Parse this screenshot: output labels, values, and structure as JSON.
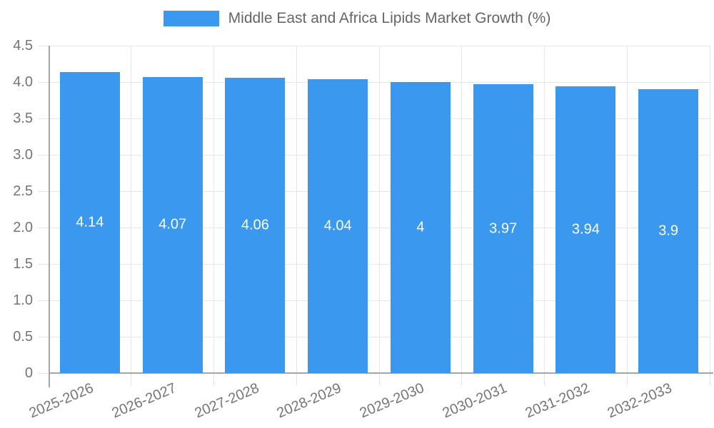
{
  "chart_data": {
    "type": "bar",
    "title": "Middle East and Africa Lipids Market Growth (%)",
    "categories": [
      "2025-2026",
      "2026-2027",
      "2027-2028",
      "2028-2029",
      "2029-2030",
      "2030-2031",
      "2031-2032",
      "2032-2033"
    ],
    "values": [
      4.14,
      4.07,
      4.06,
      4.04,
      4,
      3.97,
      3.94,
      3.9
    ],
    "value_labels": [
      "4.14",
      "4.07",
      "4.06",
      "4.04",
      "4",
      "3.97",
      "3.94",
      "3.9"
    ],
    "xlabel": "",
    "ylabel": "",
    "ylim": [
      0,
      4.5
    ],
    "yticks": [
      0,
      0.5,
      1,
      1.5,
      2,
      2.5,
      3,
      3.5,
      4,
      4.5
    ],
    "ytick_labels": [
      "0",
      "0.5",
      "1.0",
      "1.5",
      "2.0",
      "2.5",
      "3.0",
      "3.5",
      "4.0",
      "4.5"
    ],
    "grid": true,
    "legend_position": "top-center",
    "bar_color": "#3a99ee",
    "colors": {
      "grid": "#e6e6e6",
      "axis": "#a6a6a6",
      "tick": "#e3e3e3",
      "tick_label": "#757575",
      "legend_text": "#666666",
      "value_label": "#ffffff",
      "background": "#ffffff"
    }
  }
}
